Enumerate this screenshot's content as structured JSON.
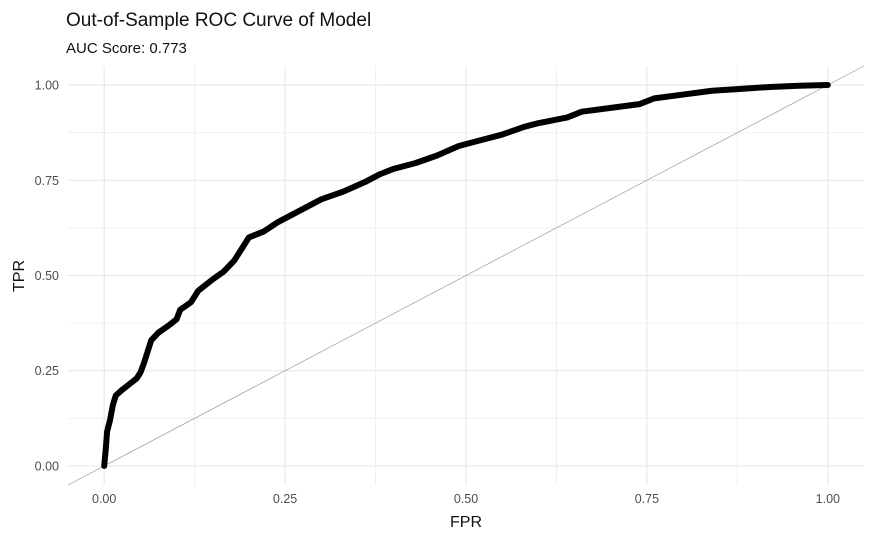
{
  "chart_data": {
    "type": "line",
    "title": "Out-of-Sample ROC Curve of Model",
    "subtitle": "AUC Score: 0.773",
    "xlabel": "FPR",
    "ylabel": "TPR",
    "xlim": [
      -0.05,
      1.05
    ],
    "ylim": [
      -0.05,
      1.05
    ],
    "x_ticks": [
      0.0,
      0.25,
      0.5,
      0.75,
      1.0
    ],
    "x_tick_labels": [
      "0.00",
      "0.25",
      "0.50",
      "0.75",
      "1.00"
    ],
    "y_ticks": [
      0.0,
      0.25,
      0.5,
      0.75,
      1.0
    ],
    "y_tick_labels": [
      "0.00",
      "0.25",
      "0.50",
      "0.75",
      "1.00"
    ],
    "grid": true,
    "legend": "none",
    "colors": {
      "curve": "#000000",
      "diagonal": "#9a9a9a",
      "grid": "#e6e6e6"
    },
    "series": [
      {
        "values": [
          [
            0.0,
            0.0
          ],
          [
            0.002,
            0.04
          ],
          [
            0.004,
            0.09
          ],
          [
            0.008,
            0.12
          ],
          [
            0.012,
            0.16
          ],
          [
            0.016,
            0.185
          ],
          [
            0.025,
            0.2
          ],
          [
            0.035,
            0.215
          ],
          [
            0.045,
            0.23
          ],
          [
            0.05,
            0.245
          ],
          [
            0.055,
            0.27
          ],
          [
            0.06,
            0.3
          ],
          [
            0.065,
            0.33
          ],
          [
            0.075,
            0.35
          ],
          [
            0.09,
            0.37
          ],
          [
            0.1,
            0.385
          ],
          [
            0.105,
            0.41
          ],
          [
            0.12,
            0.43
          ],
          [
            0.13,
            0.46
          ],
          [
            0.15,
            0.49
          ],
          [
            0.165,
            0.51
          ],
          [
            0.18,
            0.54
          ],
          [
            0.19,
            0.57
          ],
          [
            0.2,
            0.6
          ],
          [
            0.22,
            0.615
          ],
          [
            0.24,
            0.64
          ],
          [
            0.26,
            0.66
          ],
          [
            0.28,
            0.68
          ],
          [
            0.3,
            0.7
          ],
          [
            0.33,
            0.72
          ],
          [
            0.36,
            0.745
          ],
          [
            0.38,
            0.765
          ],
          [
            0.4,
            0.78
          ],
          [
            0.43,
            0.795
          ],
          [
            0.46,
            0.815
          ],
          [
            0.49,
            0.84
          ],
          [
            0.52,
            0.855
          ],
          [
            0.55,
            0.87
          ],
          [
            0.58,
            0.89
          ],
          [
            0.6,
            0.9
          ],
          [
            0.64,
            0.915
          ],
          [
            0.66,
            0.93
          ],
          [
            0.7,
            0.94
          ],
          [
            0.74,
            0.95
          ],
          [
            0.76,
            0.965
          ],
          [
            0.8,
            0.975
          ],
          [
            0.84,
            0.985
          ],
          [
            0.88,
            0.99
          ],
          [
            0.92,
            0.995
          ],
          [
            0.96,
            0.998
          ],
          [
            1.0,
            1.0
          ]
        ]
      },
      {
        "values": [
          [
            0.0,
            0.0
          ],
          [
            1.0,
            1.0
          ]
        ]
      }
    ]
  }
}
